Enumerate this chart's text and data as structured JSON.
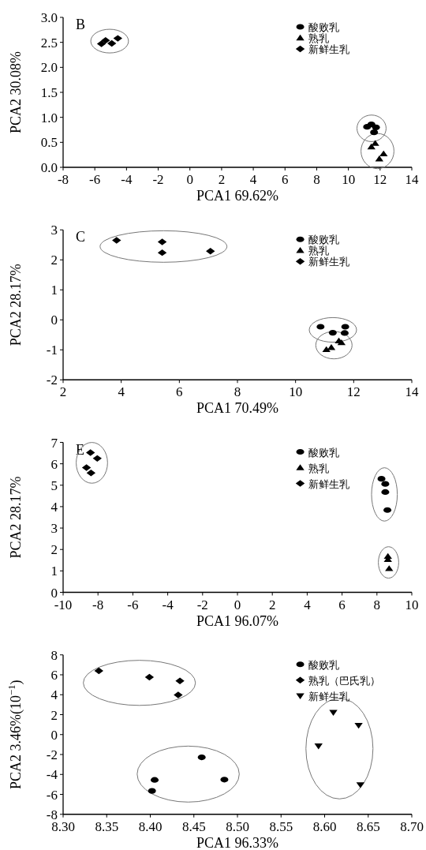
{
  "chart_data": [
    {
      "type": "scatter",
      "annotations": [
        "B"
      ],
      "xlabel": "PCA1 69.62%",
      "ylabel": "PCA2 30.08%",
      "xlim": [
        -8,
        14
      ],
      "ylim": [
        0,
        3
      ],
      "xticks": [
        -8,
        -6,
        -4,
        -2,
        0,
        2,
        4,
        6,
        8,
        10,
        12,
        14
      ],
      "yticks": [
        {
          "value": 0,
          "label": "0.0"
        },
        {
          "value": 0.5,
          "label": "0.5"
        },
        {
          "value": 1,
          "label": "1.0"
        },
        {
          "value": 1.5,
          "label": "1.5"
        },
        {
          "value": 2,
          "label": "2.0"
        },
        {
          "value": 2.5,
          "label": "2.5"
        },
        {
          "value": 3,
          "label": "3.0"
        }
      ],
      "grid": false,
      "legend": "top right",
      "series": [
        {
          "name": "酸败乳",
          "color": "#000000",
          "marker": "circle",
          "x": [
            11.18,
            11.45,
            11.74,
            11.62
          ],
          "values": [
            0.81,
            0.86,
            0.8,
            0.7
          ]
        },
        {
          "name": "熟乳",
          "color": "#000000",
          "marker": "triangle",
          "x": [
            11.45,
            11.69,
            12.22,
            11.95
          ],
          "values": [
            0.41,
            0.48,
            0.27,
            0.17
          ]
        },
        {
          "name": "新鲜生乳",
          "color": "#000000",
          "marker": "diamond",
          "x": [
            -5.58,
            -5.32,
            -4.93,
            -4.55
          ],
          "values": [
            2.47,
            2.54,
            2.48,
            2.58
          ]
        }
      ]
    },
    {
      "type": "scatter",
      "annotations": [
        "C"
      ],
      "xlabel": "PCA1 70.49%",
      "ylabel": "PCA2 28.17%",
      "xlim": [
        2,
        14
      ],
      "ylim": [
        -2,
        3
      ],
      "xticks": [
        2,
        4,
        6,
        8,
        10,
        12,
        14
      ],
      "yticks": [
        -2,
        -1,
        0,
        1,
        2,
        3
      ],
      "grid": false,
      "legend": "top right",
      "series": [
        {
          "name": "酸败乳",
          "color": "#000000",
          "marker": "circle",
          "x": [
            10.86,
            11.71,
            11.28,
            11.69
          ],
          "values": [
            -0.23,
            -0.23,
            -0.43,
            -0.44
          ]
        },
        {
          "name": "熟乳",
          "color": "#000000",
          "marker": "triangle",
          "x": [
            11.06,
            11.23,
            11.49,
            11.58
          ],
          "values": [
            -0.99,
            -0.92,
            -0.7,
            -0.76
          ]
        },
        {
          "name": "新鲜生乳",
          "color": "#000000",
          "marker": "diamond",
          "x": [
            3.84,
            5.41,
            5.41,
            7.07
          ],
          "values": [
            2.65,
            2.6,
            2.24,
            2.29
          ]
        }
      ]
    },
    {
      "type": "scatter",
      "annotations": [
        "E"
      ],
      "xlabel": "PCA1 96.07%",
      "ylabel": "PCA2 28.17%",
      "xlim": [
        -10,
        10
      ],
      "ylim": [
        0,
        7
      ],
      "xticks": [
        -10,
        -8,
        -6,
        -4,
        -2,
        0,
        2,
        4,
        6,
        8,
        10
      ],
      "yticks": [
        0,
        1,
        2,
        3,
        4,
        5,
        6,
        7
      ],
      "grid": false,
      "legend": "top right",
      "series": [
        {
          "name": "酸败乳",
          "color": "#000000",
          "marker": "circle",
          "x": [
            8.26,
            8.48,
            8.48,
            8.6
          ],
          "values": [
            5.3,
            5.06,
            4.68,
            3.84
          ]
        },
        {
          "name": "熟乳",
          "color": "#000000",
          "marker": "triangle",
          "x": [
            8.63,
            8.63,
            8.7
          ],
          "values": [
            1.68,
            1.54,
            1.11
          ]
        },
        {
          "name": "新鲜生乳",
          "color": "#000000",
          "marker": "diamond",
          "x": [
            -8.43,
            -8.04,
            -8.66,
            -8.4
          ],
          "values": [
            6.52,
            6.25,
            5.82,
            5.57
          ]
        }
      ]
    },
    {
      "type": "scatter",
      "xlabel": "PCA1 96.33%",
      "ylabel": "PCA2 3.46%(10$^{−1}$)",
      "xlim": [
        8.3,
        8.7
      ],
      "ylim": [
        -8,
        8
      ],
      "xticks": [
        {
          "value": 8.3,
          "label": "8.30"
        },
        {
          "value": 8.35,
          "label": "8.35"
        },
        {
          "value": 8.4,
          "label": "8.40"
        },
        {
          "value": 8.45,
          "label": "8.45"
        },
        {
          "value": 8.5,
          "label": "8.50"
        },
        {
          "value": 8.55,
          "label": "8.55"
        },
        {
          "value": 8.6,
          "label": "8.60"
        },
        {
          "value": 8.65,
          "label": "8.65"
        },
        {
          "value": 8.7,
          "label": "8.70"
        }
      ],
      "yticks": [
        -8,
        -6,
        -4,
        -2,
        0,
        2,
        4,
        6,
        8
      ],
      "grid": false,
      "legend": "top right",
      "series": [
        {
          "name": "酸败乳",
          "color": "#000000",
          "marker": "circle",
          "x": [
            8.459,
            8.405,
            8.485,
            8.402
          ],
          "values": [
            -2.28,
            -4.55,
            -4.52,
            -5.65
          ]
        },
        {
          "name": "熟乳（巴氏乳）",
          "color": "#000000",
          "marker": "diamond",
          "x": [
            8.341,
            8.399,
            8.434,
            8.432
          ],
          "values": [
            6.4,
            5.76,
            5.39,
            3.98
          ]
        },
        {
          "name": "新鲜生乳",
          "color": "#000000",
          "marker": "triangle-down",
          "x": [
            8.61,
            8.639,
            8.593,
            8.641
          ],
          "values": [
            2.22,
            0.92,
            -1.15,
            -5.04
          ]
        }
      ]
    }
  ]
}
